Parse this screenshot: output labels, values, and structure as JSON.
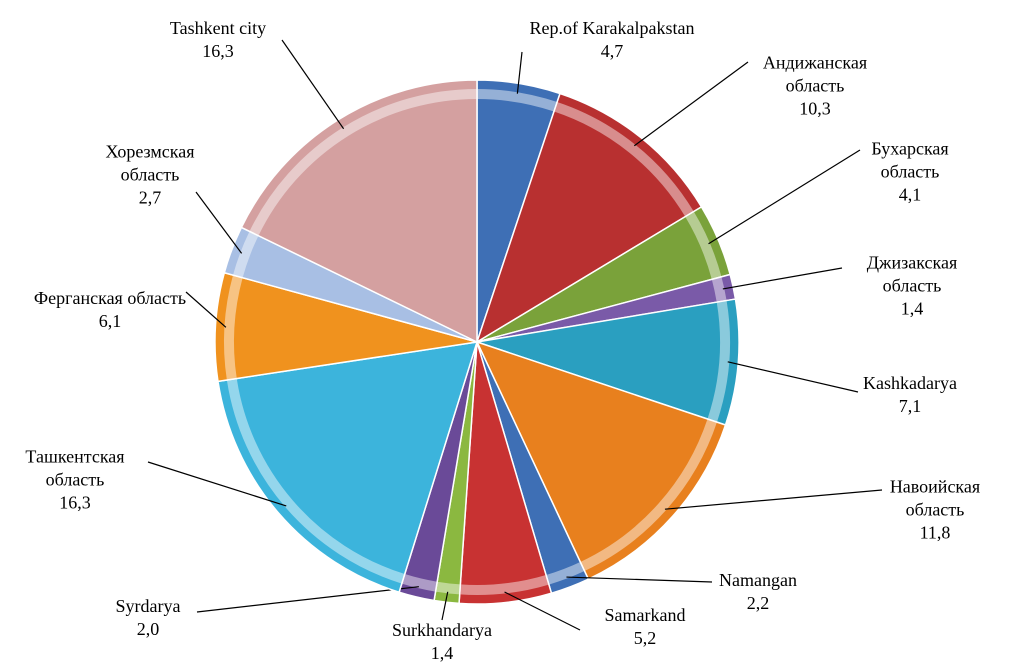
{
  "chart_data": {
    "type": "pie",
    "categories": [
      "Rep.of Karakalpakstan",
      "Андижанская область",
      "Бухарская область",
      "Джизакская область",
      "Kashkadarya",
      "Навоийская область",
      "Namangan",
      "Samarkand",
      "Surkhandarya",
      "Syrdarya",
      "Ташкентская область",
      "Ферганская область",
      "Хорезмская область",
      "Tashkent city"
    ],
    "values": [
      4.7,
      10.3,
      4.1,
      1.4,
      7.1,
      11.8,
      2.2,
      5.2,
      1.4,
      2.0,
      16.3,
      6.1,
      2.7,
      16.3
    ],
    "value_labels": [
      "4,7",
      "10,3",
      "4,1",
      "1,4",
      "7,1",
      "11,8",
      "2,2",
      "5,2",
      "1,4",
      "2,0",
      "16,3",
      "6,1",
      "2,7",
      "16,3"
    ],
    "colors": [
      "#3e6fb5",
      "#b83030",
      "#7aa23a",
      "#7a5aa8",
      "#2a9fc0",
      "#e8801e",
      "#3e6fb5",
      "#c83232",
      "#8bb840",
      "#6a4a98",
      "#3cb4dc",
      "#f0921e",
      "#a8bfe4",
      "#d4a0a0"
    ]
  }
}
